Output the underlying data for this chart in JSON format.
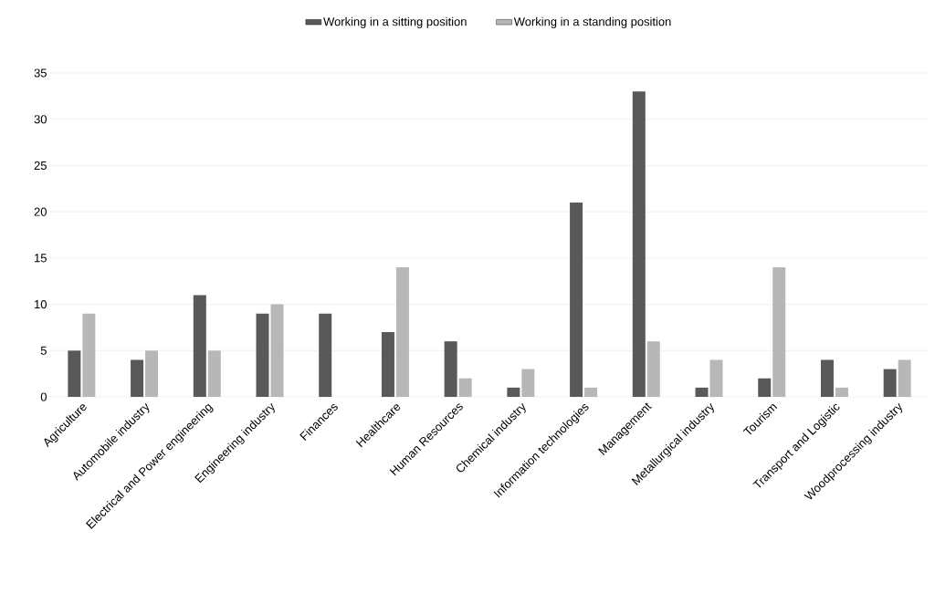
{
  "chart_data": {
    "type": "bar",
    "categories": [
      "Agriculture",
      "Automobile industry",
      "Electrical and Power engineering",
      "Engineering industry",
      "Finances",
      "Healthcare",
      "Human Resources",
      "Chemical industry",
      "Information technologies",
      "Management",
      "Metallurgical industry",
      "Tourism",
      "Transport and Logistic",
      "Woodprocessing industry"
    ],
    "series": [
      {
        "name": "Working in a sitting position",
        "color": "#595959",
        "values": [
          5,
          4,
          11,
          9,
          9,
          7,
          6,
          1,
          21,
          33,
          1,
          2,
          4,
          3
        ]
      },
      {
        "name": "Working in a standing position",
        "color": "#b7b7b7",
        "values": [
          9,
          5,
          5,
          10,
          0,
          14,
          2,
          3,
          1,
          6,
          4,
          14,
          1,
          4
        ]
      }
    ],
    "ylim": [
      0,
      35
    ],
    "yticks": [
      0,
      5,
      10,
      15,
      20,
      25,
      30,
      35
    ],
    "grid": "y",
    "legend": "top"
  }
}
